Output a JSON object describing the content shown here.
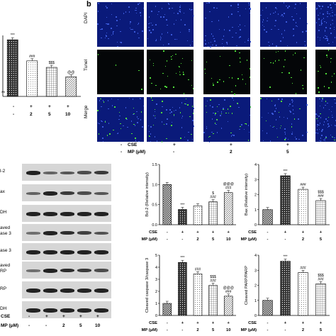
{
  "panel_b": {
    "letter": "b",
    "row_labels": [
      "DAPI",
      "Tunel",
      "Merge"
    ],
    "cse_label": "CSE",
    "mp_label": "MP (μM)",
    "cse_values": [
      "-",
      "+",
      "+",
      "+"
    ],
    "mp_values": [
      "-",
      "-",
      "2",
      "5"
    ]
  },
  "panel_a_partial": {
    "sig_labels": [
      "***",
      "###",
      "$$$",
      "@@"
    ],
    "axis_fragment": "**",
    "cse_values": [
      "-",
      "+",
      "+",
      "+"
    ],
    "mp_values": [
      "-",
      "2",
      "5",
      "10"
    ]
  },
  "western_blot": {
    "row_labels": [
      "l-2",
      "ax",
      "DH",
      "aved\nase 3",
      "ase 3",
      "aved\nRP",
      "RP",
      "DH"
    ],
    "cse_label": "CSE",
    "mp_label": "MP (μM)",
    "cse_values": [
      "-",
      "+",
      "+",
      "+",
      "+"
    ],
    "mp_values": [
      "-",
      "-",
      "2",
      "5",
      "10"
    ]
  },
  "conditions": {
    "cse_label": "CSE",
    "mp_label": "MP (μM)",
    "cse_values": [
      "-",
      "+",
      "+",
      "+",
      "+"
    ],
    "mp_values": [
      "-",
      "-",
      "2",
      "5",
      "10"
    ]
  },
  "chart_data": [
    {
      "type": "bar",
      "ylabel": "Bcl-2 (Relative intensity)",
      "ylim": [
        0,
        1.5
      ],
      "yticks": [
        "0.0",
        "0.5",
        "1.0",
        "1.5"
      ],
      "values": [
        1.0,
        0.38,
        0.47,
        0.57,
        0.8
      ],
      "sig": [
        "",
        "***",
        "",
        "$\n###",
        "@@@\n###"
      ]
    },
    {
      "type": "bar",
      "ylabel": "Bax (Relative intensity)",
      "ylim": [
        0,
        4
      ],
      "yticks": [
        "0",
        "1",
        "2",
        "3",
        "4"
      ],
      "values": [
        1.0,
        3.25,
        2.35,
        1.6
      ],
      "sig": [
        "",
        "***",
        "###",
        "$$$\n###"
      ]
    },
    {
      "type": "bar",
      "ylabel": "Cleaved caspase 3/caspase 3",
      "ylim": [
        0,
        5
      ],
      "yticks": [
        "0",
        "1",
        "2",
        "3",
        "4",
        "5"
      ],
      "values": [
        1.0,
        4.4,
        3.45,
        2.5,
        1.6
      ],
      "sig": [
        "",
        "***",
        "###",
        "$$$\n###",
        "@@@\n###"
      ]
    },
    {
      "type": "bar",
      "ylabel": "Cleaved PARP/PARP",
      "ylim": [
        0,
        4
      ],
      "yticks": [
        "0",
        "1",
        "2",
        "3",
        "4"
      ],
      "values": [
        1.0,
        3.6,
        2.85,
        2.1
      ],
      "sig": [
        "",
        "***",
        "###",
        "$$$\n###"
      ]
    },
    {
      "type": "bar",
      "ylabel": "",
      "ylim": [
        0,
        4.2
      ],
      "values": [
        3.9,
        2.45,
        2.0,
        1.35
      ],
      "sig": [
        "***",
        "###",
        "$$$",
        "@@"
      ]
    }
  ],
  "colors": {
    "dapi_blue": "#0a1a7a",
    "tunel_green": "#4fdc3a",
    "bar_white": "#ffffff",
    "bar_black": "#222222"
  }
}
